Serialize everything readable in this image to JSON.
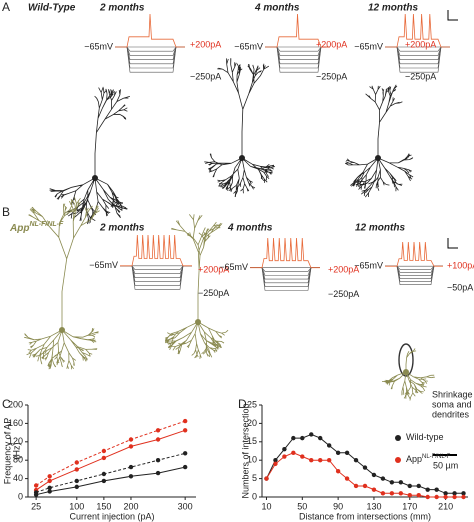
{
  "panel_a": {
    "label": "A",
    "genotype": "Wild-Type",
    "ages": [
      "2 months",
      "4 months",
      "12 months"
    ],
    "traces": [
      {
        "rest": "−65mV",
        "max": "+200pA",
        "min": "−250pA"
      },
      {
        "rest": "−65mV",
        "max": "+200pA",
        "min": "−250pA"
      },
      {
        "rest": "−65mV",
        "max": "+200pA",
        "min": "−250pA"
      }
    ]
  },
  "panel_b": {
    "label": "B",
    "genotype": "App",
    "genotype_sup": "NL-F/NL-F",
    "ages": [
      "2 months",
      "4 months",
      "12 months"
    ],
    "traces": [
      {
        "rest": "−65mV",
        "max": "+200pA",
        "min": "−250pA"
      },
      {
        "rest": "−65mV",
        "max": "+200pA",
        "min": "−250pA"
      },
      {
        "rest": "−65mV",
        "max": "+100pA",
        "min": "−50pA"
      }
    ],
    "note": [
      "Shrinkage of",
      "soma and",
      "dendrites"
    ],
    "scale": "50 µm"
  },
  "chart_data": [
    {
      "type": "line",
      "panel": "C",
      "xlabel": "Current injection (pA)",
      "ylabel": "Frequency of AP",
      "ylabel2": "(Hz)",
      "xlim": [
        10,
        320
      ],
      "xticks": [
        25,
        100,
        150,
        200,
        300
      ],
      "ylim": [
        0,
        200
      ],
      "yticks": [
        0,
        40,
        80,
        120,
        160,
        200
      ],
      "x": [
        25,
        50,
        100,
        150,
        200,
        250,
        300
      ],
      "series": [
        {
          "color": "#e0301e",
          "dash": true,
          "values": [
            25,
            45,
            75,
            100,
            125,
            145,
            165
          ]
        },
        {
          "color": "#e0301e",
          "dash": false,
          "values": [
            15,
            35,
            60,
            85,
            110,
            125,
            145
          ]
        },
        {
          "color": "#222222",
          "dash": true,
          "values": [
            10,
            20,
            35,
            50,
            65,
            80,
            95
          ]
        },
        {
          "color": "#222222",
          "dash": false,
          "values": [
            5,
            12,
            22,
            35,
            45,
            52,
            65
          ]
        }
      ]
    },
    {
      "type": "line",
      "panel": "D",
      "xlabel": "Distance from intersections (mm)",
      "ylabel": "Numbers of intersection",
      "xlim": [
        5,
        235
      ],
      "xticks": [
        10,
        50,
        90,
        130,
        170,
        210
      ],
      "ylim": [
        0,
        25
      ],
      "yticks": [
        0,
        5,
        10,
        15,
        20,
        25
      ],
      "x": [
        10,
        20,
        30,
        40,
        50,
        60,
        70,
        80,
        90,
        100,
        110,
        120,
        130,
        140,
        150,
        160,
        170,
        180,
        190,
        200,
        210,
        220,
        230
      ],
      "series": [
        {
          "name": "Wild-type",
          "color": "#222222",
          "dash": false,
          "values": [
            5,
            10,
            13,
            16,
            16,
            17,
            16,
            14,
            12,
            12,
            10,
            8,
            6,
            5,
            4,
            4,
            3,
            3,
            2,
            2,
            1,
            1,
            1
          ]
        },
        {
          "name": "App",
          "name_sup": "NL-F/NL-F",
          "color": "#e0301e",
          "dash": false,
          "values": [
            5,
            9,
            11,
            12,
            11,
            10,
            10,
            10,
            7,
            5,
            3,
            3,
            2,
            1,
            1,
            1,
            0.5,
            0.5,
            0,
            0,
            0,
            0,
            0
          ]
        }
      ]
    }
  ]
}
